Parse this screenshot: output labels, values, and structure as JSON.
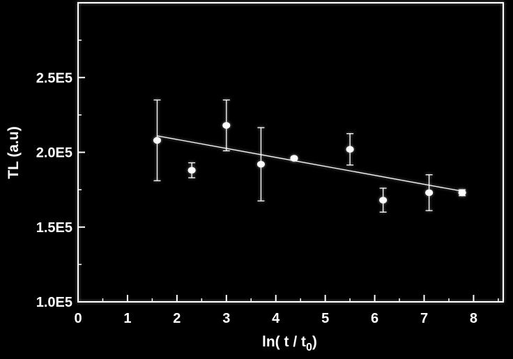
{
  "chart_data": {
    "type": "scatter",
    "xlabel": "ln( t / t",
    "xlabel_sub": "0",
    "xlabel_close": ")",
    "ylabel": "TL (a.u)",
    "xlim": [
      0,
      8.6
    ],
    "ylim": [
      100000,
      300000
    ],
    "x_ticks": [
      0,
      1,
      2,
      3,
      4,
      5,
      6,
      7,
      8
    ],
    "x_tick_labels": [
      "0",
      "1",
      "2",
      "3",
      "4",
      "5",
      "6",
      "7",
      "8"
    ],
    "y_ticks": [
      100000,
      150000,
      200000,
      250000
    ],
    "y_tick_labels": [
      "1.0E5",
      "1.5E5",
      "2.0E5",
      "2.5E5"
    ],
    "grid": false,
    "points": [
      {
        "x": 1.6,
        "y": 208000,
        "err": 27000
      },
      {
        "x": 2.3,
        "y": 188000,
        "err": 5000
      },
      {
        "x": 3.0,
        "y": 218000,
        "err": 17000
      },
      {
        "x": 3.7,
        "y": 192000,
        "err": 24500
      },
      {
        "x": 4.37,
        "y": 196000,
        "err": 0
      },
      {
        "x": 5.5,
        "y": 202000,
        "err": 10500
      },
      {
        "x": 6.17,
        "y": 168000,
        "err": 8000
      },
      {
        "x": 7.1,
        "y": 173000,
        "err": 12000
      },
      {
        "x": 7.77,
        "y": 173000,
        "err": 2000
      }
    ],
    "fit_line": {
      "x": [
        1.6,
        7.77
      ],
      "y": [
        211000,
        174000
      ]
    },
    "colors": {
      "background": "#000000",
      "foreground": "#ffffff"
    }
  }
}
